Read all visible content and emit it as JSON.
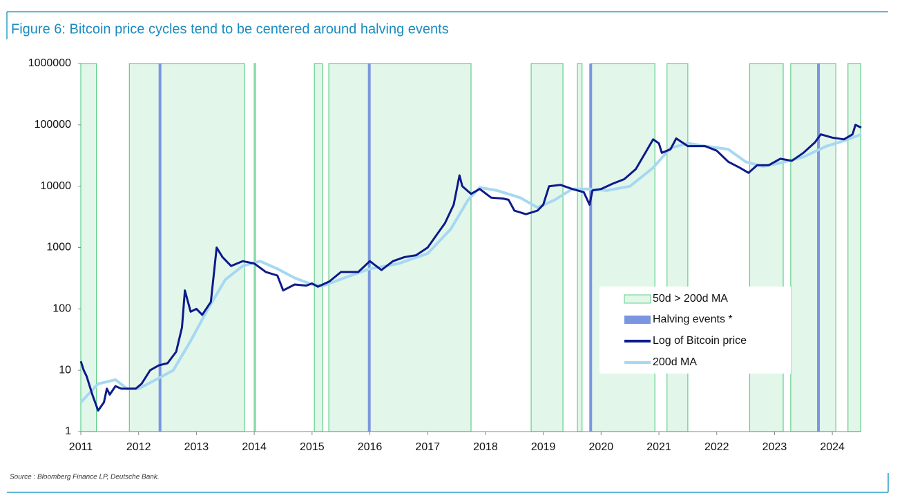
{
  "chart_data": {
    "type": "line",
    "title": "Figure 6: Bitcoin price cycles tend to be centered around halving events",
    "source": "Source : Bloomberg Finance LP, Deutsche Bank.",
    "log_y": true,
    "xlim": [
      2011,
      2024.5
    ],
    "xticks": [
      2011,
      2012,
      2013,
      2014,
      2015,
      2016,
      2017,
      2018,
      2019,
      2020,
      2021,
      2022,
      2023,
      2024
    ],
    "ylim": [
      1,
      1000000
    ],
    "yticks": [
      1,
      10,
      100,
      1000,
      10000,
      100000,
      1000000
    ],
    "legend": "lower right",
    "shaded": {
      "name": "50d > 200d MA",
      "color": "#e3f6ea",
      "edge": "#5fcf8a",
      "spans": [
        [
          2011.0,
          2011.27
        ],
        [
          2011.84,
          2013.83
        ],
        [
          2014.0,
          2014.02
        ],
        [
          2015.04,
          2015.18
        ],
        [
          2015.29,
          2017.75
        ],
        [
          2018.79,
          2019.34
        ],
        [
          2019.59,
          2019.67
        ],
        [
          2019.83,
          2020.93
        ],
        [
          2021.14,
          2021.5
        ],
        [
          2022.57,
          2023.15
        ],
        [
          2023.28,
          2024.06
        ],
        [
          2024.27,
          2024.49
        ]
      ]
    },
    "halvings": {
      "name": "Halving events *",
      "color": "#7b96e0",
      "x": [
        2012.37,
        2015.99,
        2019.82,
        2023.76
      ]
    },
    "series": [
      {
        "name": "Log of Bitcoin price",
        "color": "#0d1a8a",
        "x": [
          2011.0,
          2011.05,
          2011.1,
          2011.2,
          2011.3,
          2011.4,
          2011.45,
          2011.5,
          2011.6,
          2011.7,
          2011.85,
          2011.95,
          2012.05,
          2012.2,
          2012.35,
          2012.5,
          2012.65,
          2012.75,
          2012.8,
          2012.9,
          2013.0,
          2013.1,
          2013.25,
          2013.35,
          2013.45,
          2013.6,
          2013.8,
          2014.0,
          2014.2,
          2014.4,
          2014.5,
          2014.7,
          2014.9,
          2015.0,
          2015.1,
          2015.3,
          2015.5,
          2015.8,
          2016.0,
          2016.2,
          2016.4,
          2016.6,
          2016.8,
          2017.0,
          2017.3,
          2017.45,
          2017.55,
          2017.6,
          2017.75,
          2017.9,
          2018.1,
          2018.3,
          2018.4,
          2018.5,
          2018.7,
          2018.9,
          2019.0,
          2019.1,
          2019.3,
          2019.5,
          2019.7,
          2019.8,
          2019.85,
          2020.0,
          2020.2,
          2020.4,
          2020.6,
          2020.8,
          2020.9,
          2021.0,
          2021.05,
          2021.2,
          2021.3,
          2021.5,
          2021.8,
          2022.0,
          2022.2,
          2022.4,
          2022.55,
          2022.7,
          2022.9,
          2023.1,
          2023.3,
          2023.5,
          2023.7,
          2023.8,
          2024.0,
          2024.2,
          2024.35,
          2024.4,
          2024.5
        ],
        "values": [
          14,
          10,
          8,
          4,
          2.2,
          3,
          5,
          4,
          5.5,
          5,
          5,
          5,
          6,
          10,
          12,
          13,
          20,
          50,
          200,
          90,
          100,
          80,
          130,
          1000,
          700,
          500,
          600,
          550,
          400,
          350,
          200,
          250,
          240,
          260,
          230,
          280,
          400,
          400,
          600,
          430,
          600,
          700,
          750,
          1000,
          2500,
          5000,
          15000,
          10000,
          7500,
          9000,
          6500,
          6300,
          6000,
          4000,
          3500,
          4000,
          5000,
          10000,
          10500,
          9000,
          8000,
          5000,
          8500,
          9000,
          11000,
          13000,
          19000,
          40000,
          58000,
          50000,
          35000,
          40000,
          60000,
          45000,
          45000,
          38000,
          25000,
          20000,
          16500,
          22000,
          22000,
          28000,
          26000,
          35000,
          52000,
          70000,
          62000,
          58000,
          70000,
          100000,
          90000
        ]
      },
      {
        "name": "200d MA",
        "color": "#a6d8f2",
        "x": [
          2011.0,
          2011.3,
          2011.6,
          2011.8,
          2012.0,
          2012.3,
          2012.6,
          2012.9,
          2013.2,
          2013.5,
          2013.8,
          2014.1,
          2014.4,
          2014.7,
          2015.0,
          2015.2,
          2015.6,
          2016.0,
          2016.5,
          2017.0,
          2017.4,
          2017.7,
          2017.9,
          2018.2,
          2018.6,
          2018.9,
          2019.2,
          2019.5,
          2019.8,
          2020.1,
          2020.5,
          2020.9,
          2021.2,
          2021.5,
          2021.8,
          2022.2,
          2022.5,
          2022.8,
          2023.1,
          2023.5,
          2023.9,
          2024.2,
          2024.5
        ],
        "values": [
          3,
          6,
          7,
          5,
          5,
          7,
          10,
          30,
          100,
          300,
          500,
          600,
          450,
          320,
          250,
          240,
          330,
          450,
          550,
          800,
          2000,
          6000,
          9500,
          8500,
          6500,
          4500,
          6000,
          9000,
          9000,
          8500,
          10000,
          20000,
          42000,
          50000,
          45000,
          40000,
          25000,
          21000,
          24000,
          30000,
          45000,
          55000,
          70000
        ]
      }
    ]
  }
}
